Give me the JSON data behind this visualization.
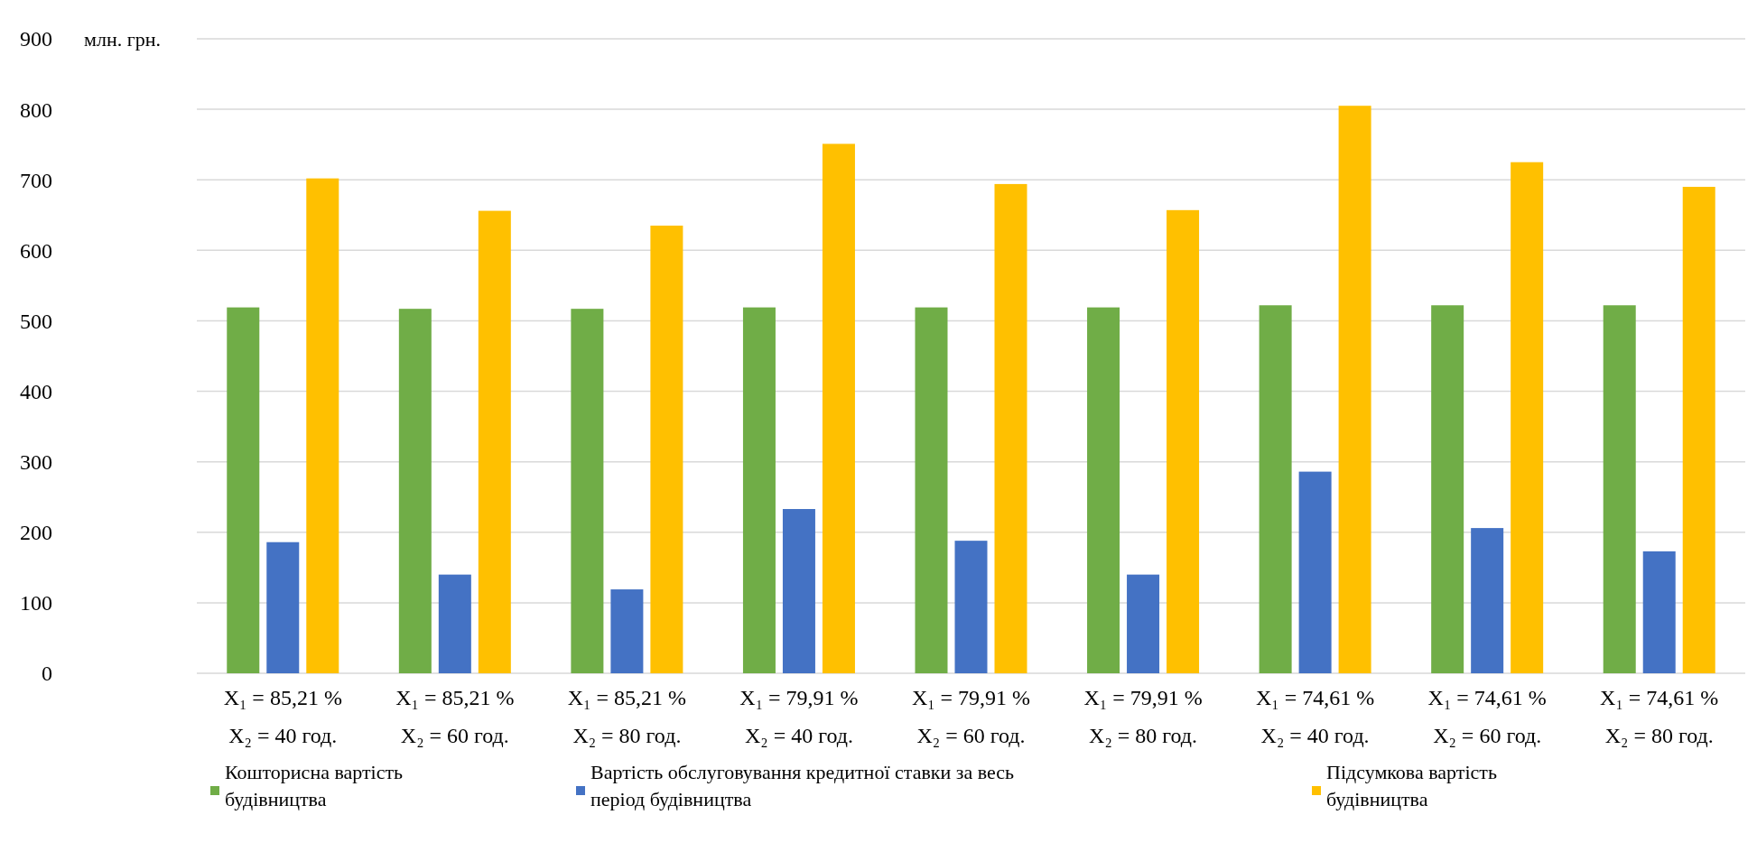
{
  "chart_data": {
    "type": "bar",
    "ylabel": "млн. грн.",
    "categories": [
      "X₁ = 85,21 %\nX₂ = 40 год.",
      "X₁ = 85,21 %\nX₂ = 60 год.",
      "X₁ = 85,21 %\nX₂ = 80 год.",
      "X₁ = 79,91 %\nX₂ = 40 год.",
      "X₁ = 79,91 %\nX₂ = 60 год.",
      "X₁ = 79,91 %\nX₂ = 80 год.",
      "X₁ = 74,61 %\nX₂ = 40 год.",
      "X₁ = 74,61 %\nX₂ = 60 год.",
      "X₁ = 74,61 %\nX₂ = 80 год."
    ],
    "series": [
      {
        "name": "Кошторисна вартість будівництва",
        "color": "#70ad47",
        "values": [
          519,
          517,
          517,
          519,
          519,
          519,
          522,
          522,
          522
        ]
      },
      {
        "name": "Вартість обслуговування кредитної ставки за весь період будівництва",
        "color": "#4472c4",
        "values": [
          186,
          140,
          119,
          233,
          188,
          140,
          286,
          206,
          173
        ]
      },
      {
        "name": "Підсумкова вартість будівництва",
        "color": "#ffc000",
        "values": [
          702,
          656,
          635,
          751,
          694,
          657,
          805,
          725,
          690
        ]
      }
    ],
    "ylim": [
      0,
      900
    ],
    "yticks": [
      0,
      100,
      200,
      300,
      400,
      500,
      600,
      700,
      800,
      900
    ],
    "grid": "y",
    "legend": "bottom"
  }
}
